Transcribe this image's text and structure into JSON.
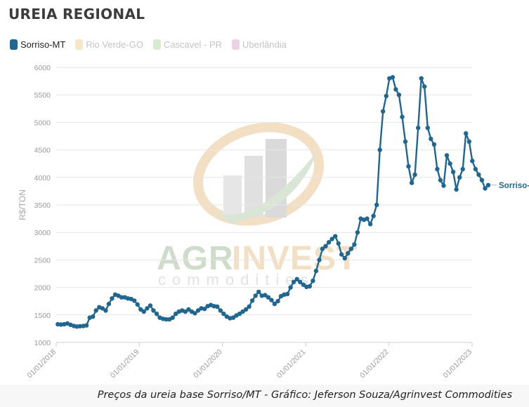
{
  "chart_data": {
    "type": "line",
    "title": "UREIA REGIONAL",
    "ylabel": "R$/TON",
    "xlabel": "",
    "ylim": [
      1000,
      6000
    ],
    "yticks": [
      1000,
      1500,
      2000,
      2500,
      3000,
      3500,
      4000,
      4500,
      5000,
      5500,
      6000
    ],
    "xticks": [
      "01/01/2018",
      "01/01/2019",
      "01/01/2020",
      "01/01/2021",
      "01/01/2022",
      "01/01/2023"
    ],
    "grid": "horizontal",
    "legend_placement": "top-left",
    "legend": [
      {
        "name": "Sorriso-MT",
        "color": "#1f6690",
        "active": true
      },
      {
        "name": "Rio Verde-GO",
        "color": "#f8e6c4",
        "active": false
      },
      {
        "name": "Cascavel - PR",
        "color": "#d6ebd0",
        "active": false
      },
      {
        "name": "Uberlândia",
        "color": "#ecd3e4",
        "active": false
      }
    ],
    "series": [
      {
        "name": "Sorriso-MT",
        "color": "#1f6690",
        "end_label": "Sorriso-MT",
        "points": [
          [
            "2018-01-08",
            1330
          ],
          [
            "2018-01-22",
            1325
          ],
          [
            "2018-02-05",
            1330
          ],
          [
            "2018-02-19",
            1345
          ],
          [
            "2018-03-05",
            1320
          ],
          [
            "2018-03-19",
            1300
          ],
          [
            "2018-04-02",
            1290
          ],
          [
            "2018-04-16",
            1295
          ],
          [
            "2018-04-30",
            1300
          ],
          [
            "2018-05-14",
            1310
          ],
          [
            "2018-05-28",
            1450
          ],
          [
            "2018-06-11",
            1470
          ],
          [
            "2018-06-25",
            1580
          ],
          [
            "2018-07-09",
            1640
          ],
          [
            "2018-07-23",
            1620
          ],
          [
            "2018-08-06",
            1580
          ],
          [
            "2018-08-20",
            1700
          ],
          [
            "2018-09-03",
            1800
          ],
          [
            "2018-09-17",
            1870
          ],
          [
            "2018-10-01",
            1850
          ],
          [
            "2018-10-15",
            1820
          ],
          [
            "2018-10-29",
            1820
          ],
          [
            "2018-11-12",
            1800
          ],
          [
            "2018-11-26",
            1790
          ],
          [
            "2018-12-10",
            1760
          ],
          [
            "2018-12-24",
            1690
          ],
          [
            "2019-01-07",
            1600
          ],
          [
            "2019-01-21",
            1560
          ],
          [
            "2019-02-04",
            1620
          ],
          [
            "2019-02-18",
            1670
          ],
          [
            "2019-03-04",
            1580
          ],
          [
            "2019-03-18",
            1520
          ],
          [
            "2019-04-01",
            1450
          ],
          [
            "2019-04-15",
            1430
          ],
          [
            "2019-04-29",
            1420
          ],
          [
            "2019-05-13",
            1420
          ],
          [
            "2019-05-27",
            1450
          ],
          [
            "2019-06-10",
            1520
          ],
          [
            "2019-06-24",
            1560
          ],
          [
            "2019-07-08",
            1580
          ],
          [
            "2019-07-22",
            1560
          ],
          [
            "2019-08-05",
            1600
          ],
          [
            "2019-08-19",
            1560
          ],
          [
            "2019-09-02",
            1530
          ],
          [
            "2019-09-16",
            1580
          ],
          [
            "2019-09-30",
            1620
          ],
          [
            "2019-10-14",
            1610
          ],
          [
            "2019-10-28",
            1660
          ],
          [
            "2019-11-11",
            1680
          ],
          [
            "2019-11-25",
            1660
          ],
          [
            "2019-12-09",
            1650
          ],
          [
            "2019-12-23",
            1580
          ],
          [
            "2020-01-06",
            1520
          ],
          [
            "2020-01-20",
            1470
          ],
          [
            "2020-02-03",
            1440
          ],
          [
            "2020-02-17",
            1450
          ],
          [
            "2020-03-02",
            1490
          ],
          [
            "2020-03-16",
            1520
          ],
          [
            "2020-03-30",
            1560
          ],
          [
            "2020-04-13",
            1600
          ],
          [
            "2020-04-27",
            1650
          ],
          [
            "2020-05-11",
            1760
          ],
          [
            "2020-05-25",
            1850
          ],
          [
            "2020-06-08",
            1920
          ],
          [
            "2020-06-22",
            1850
          ],
          [
            "2020-07-06",
            1860
          ],
          [
            "2020-07-20",
            1820
          ],
          [
            "2020-08-03",
            1770
          ],
          [
            "2020-08-17",
            1700
          ],
          [
            "2020-08-31",
            1750
          ],
          [
            "2020-09-14",
            1840
          ],
          [
            "2020-09-28",
            1870
          ],
          [
            "2020-10-12",
            1880
          ],
          [
            "2020-10-26",
            2000
          ],
          [
            "2020-11-09",
            2100
          ],
          [
            "2020-11-23",
            2150
          ],
          [
            "2020-12-07",
            2100
          ],
          [
            "2020-12-21",
            2050
          ],
          [
            "2021-01-04",
            2010
          ],
          [
            "2021-01-18",
            2020
          ],
          [
            "2021-02-01",
            2120
          ],
          [
            "2021-02-15",
            2300
          ],
          [
            "2021-03-01",
            2500
          ],
          [
            "2021-03-15",
            2700
          ],
          [
            "2021-03-29",
            2750
          ],
          [
            "2021-04-12",
            2820
          ],
          [
            "2021-04-26",
            2880
          ],
          [
            "2021-05-10",
            2930
          ],
          [
            "2021-05-24",
            2800
          ],
          [
            "2021-06-07",
            2600
          ],
          [
            "2021-06-21",
            2530
          ],
          [
            "2021-07-05",
            2620
          ],
          [
            "2021-07-19",
            2700
          ],
          [
            "2021-08-02",
            2780
          ],
          [
            "2021-08-16",
            3000
          ],
          [
            "2021-08-30",
            3250
          ],
          [
            "2021-09-13",
            3230
          ],
          [
            "2021-09-27",
            3250
          ],
          [
            "2021-10-11",
            3150
          ],
          [
            "2021-10-25",
            3300
          ],
          [
            "2021-11-08",
            3500
          ],
          [
            "2021-11-22",
            4500
          ],
          [
            "2021-12-06",
            5200
          ],
          [
            "2021-12-20",
            5480
          ],
          [
            "2022-01-03",
            5800
          ],
          [
            "2022-01-17",
            5820
          ],
          [
            "2022-01-31",
            5600
          ],
          [
            "2022-02-14",
            5500
          ],
          [
            "2022-02-28",
            5100
          ],
          [
            "2022-03-14",
            4650
          ],
          [
            "2022-03-28",
            4200
          ],
          [
            "2022-04-11",
            3900
          ],
          [
            "2022-04-25",
            4050
          ],
          [
            "2022-05-09",
            4900
          ],
          [
            "2022-05-23",
            5800
          ],
          [
            "2022-06-06",
            5650
          ],
          [
            "2022-06-20",
            4900
          ],
          [
            "2022-07-04",
            4700
          ],
          [
            "2022-07-18",
            4600
          ],
          [
            "2022-08-01",
            4150
          ],
          [
            "2022-08-15",
            3950
          ],
          [
            "2022-08-29",
            3850
          ],
          [
            "2022-09-12",
            4400
          ],
          [
            "2022-09-26",
            4250
          ],
          [
            "2022-10-10",
            4100
          ],
          [
            "2022-10-24",
            3780
          ],
          [
            "2022-11-07",
            4000
          ],
          [
            "2022-11-21",
            4150
          ],
          [
            "2022-12-05",
            4800
          ],
          [
            "2022-12-19",
            4650
          ],
          [
            "2023-01-02",
            4300
          ],
          [
            "2023-01-16",
            4150
          ],
          [
            "2023-01-30",
            4050
          ],
          [
            "2023-02-13",
            3950
          ],
          [
            "2023-02-27",
            3800
          ],
          [
            "2023-03-13",
            3860
          ]
        ]
      }
    ]
  },
  "caption": "Preços da ureia base Sorriso/MT - Gráfico: Jeferson Souza/Agrinvest Commodities",
  "watermark": {
    "brand_left": "AGR",
    "brand_right": "INVEST",
    "sub": "commodities",
    "colors": {
      "green": "#c7d9c3",
      "orange": "#f3dfc4",
      "grey": "#e1e1e1"
    }
  }
}
